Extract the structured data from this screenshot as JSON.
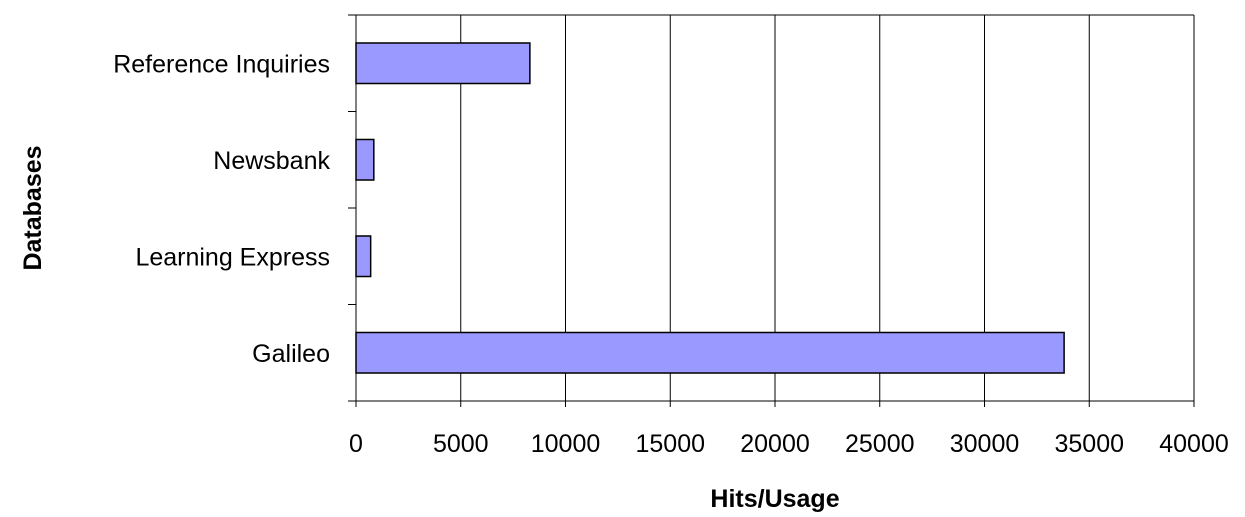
{
  "chart_data": {
    "type": "bar",
    "orientation": "horizontal",
    "categories": [
      "Reference Inquiries",
      "Newsbank",
      "Learning Express",
      "Galileo"
    ],
    "values": [
      8300,
      850,
      700,
      33800
    ],
    "xlabel": "Hits/Usage",
    "ylabel": "Databases",
    "xlim": [
      0,
      40000
    ],
    "xticks": [
      0,
      5000,
      10000,
      15000,
      20000,
      25000,
      30000,
      35000,
      40000
    ],
    "grid": "vertical",
    "legend": "none",
    "colors": {
      "bar_fill": "#9999ff",
      "bar_stroke": "#000000",
      "grid": "#000000"
    }
  }
}
